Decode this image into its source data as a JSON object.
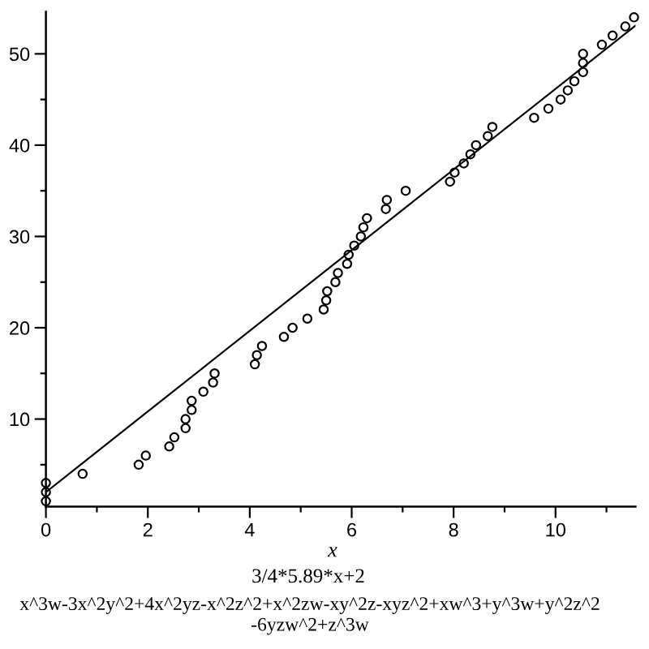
{
  "chart_data": {
    "type": "scatter",
    "title": "3/4*5.89*x+2",
    "subtitle": "x^3w-3x^2y^2+4x^2yz-x^2z^2+x^2zw-xy^2z-xyz^2+xw^3+y^3w+y^2z^2\n-6yzw^2+z^3w",
    "xlabel": "x",
    "series": [
      {
        "color": "#000000",
        "marker": "circle",
        "x": [
          0,
          0,
          0,
          0.72,
          1.82,
          1.96,
          2.42,
          2.52,
          2.74,
          2.74,
          2.86,
          2.86,
          3.09,
          3.28,
          3.31,
          4.1,
          4.14,
          4.24,
          4.67,
          4.84,
          5.13,
          5.45,
          5.5,
          5.52,
          5.68,
          5.73,
          5.91,
          5.94,
          6.05,
          6.18,
          6.23,
          6.3,
          6.67,
          6.69,
          7.06,
          7.93,
          8.02,
          8.2,
          8.33,
          8.44,
          8.67,
          8.76,
          9.58,
          9.86,
          10.1,
          10.24,
          10.37,
          10.54,
          10.54,
          10.54,
          10.91,
          11.12,
          11.37,
          11.54
        ],
        "values": [
          1,
          2,
          3,
          4,
          5,
          6,
          7,
          8,
          9,
          10,
          11,
          12,
          13,
          14,
          15,
          16,
          17,
          18,
          19,
          20,
          21,
          22,
          23,
          24,
          25,
          26,
          27,
          28,
          29,
          30,
          31,
          32,
          33,
          34,
          35,
          36,
          37,
          38,
          39,
          40,
          41,
          42,
          43,
          44,
          45,
          46,
          47,
          48,
          49,
          50,
          51,
          52,
          53,
          54
        ]
      },
      {
        "type": "line",
        "color": "#000000",
        "x": [
          0,
          11.57
        ],
        "values": [
          2,
          53.1
        ]
      }
    ],
    "xlim": [
      0,
      11.57
    ],
    "ylim": [
      0.4,
      54.6
    ],
    "xticks": [
      0,
      {
        "value": 1,
        "label": null
      },
      2,
      {
        "value": 3,
        "label": null
      },
      4,
      {
        "value": 5,
        "label": null
      },
      6,
      {
        "value": 7,
        "label": null
      },
      8,
      {
        "value": 9,
        "label": null
      },
      10,
      {
        "value": 11,
        "label": null
      }
    ],
    "yticks": [
      {
        "value": 5,
        "label": null
      },
      10,
      {
        "value": 15,
        "label": null
      },
      20,
      {
        "value": 25,
        "label": null
      },
      30,
      {
        "value": 35,
        "label": null
      },
      40,
      {
        "value": 45,
        "label": null
      },
      50
    ]
  }
}
